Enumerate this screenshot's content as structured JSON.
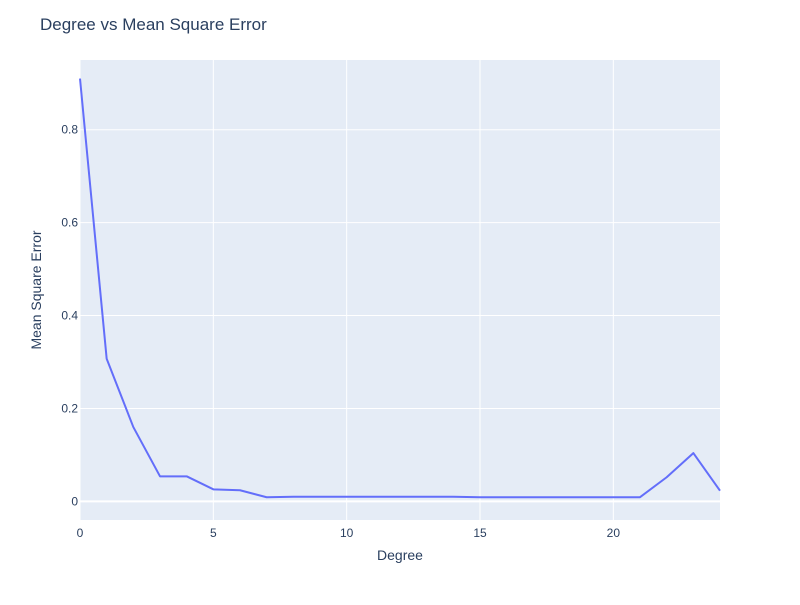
{
  "chart_data": {
    "type": "line",
    "title": "Degree vs Mean Square Error",
    "xlabel": "Degree",
    "ylabel": "Mean Square Error",
    "xlim": [
      0,
      24
    ],
    "ylim": [
      -0.04,
      0.95
    ],
    "x_ticks": [
      0,
      5,
      10,
      15,
      20
    ],
    "y_ticks": [
      0,
      0.2,
      0.4,
      0.6,
      0.8
    ],
    "x_tick_labels": [
      "0",
      "5",
      "10",
      "15",
      "20"
    ],
    "y_tick_labels": [
      "0",
      "0.2",
      "0.4",
      "0.6",
      "0.8"
    ],
    "grid": true,
    "series": [
      {
        "color": "#636efa",
        "x": [
          0,
          1,
          2,
          3,
          4,
          5,
          6,
          7,
          8,
          9,
          10,
          11,
          12,
          13,
          14,
          15,
          16,
          17,
          18,
          19,
          20,
          21,
          22,
          23,
          24
        ],
        "y": [
          0.91,
          0.307,
          0.16,
          0.054,
          0.054,
          0.026,
          0.024,
          0.009,
          0.01,
          0.01,
          0.01,
          0.01,
          0.01,
          0.01,
          0.01,
          0.009,
          0.009,
          0.009,
          0.009,
          0.009,
          0.009,
          0.009,
          0.052,
          0.104,
          0.023
        ]
      }
    ]
  },
  "colors": {
    "plot_background": "#e5ecf6",
    "grid": "#ffffff",
    "text": "#2a3f5f",
    "tick_text": "#2a3f5f"
  }
}
